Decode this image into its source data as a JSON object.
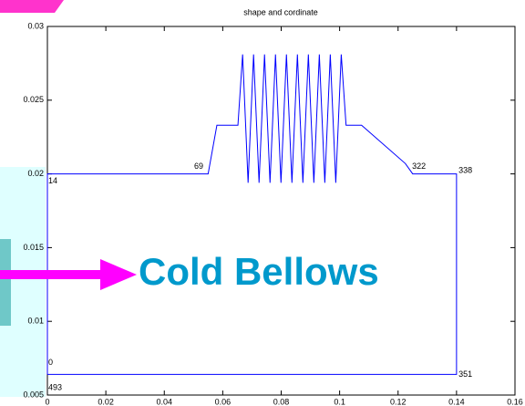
{
  "chart_data": {
    "type": "line",
    "title": "shape and cordinate",
    "series": [
      {
        "color": "#0000ff",
        "x": [
          0,
          0,
          0.055,
          0.058,
          0.0652,
          0.0668,
          0.06868,
          0.07055,
          0.07243,
          0.0743,
          0.07618,
          0.07805,
          0.07993,
          0.0818,
          0.08368,
          0.08555,
          0.08743,
          0.0893,
          0.09118,
          0.09305,
          0.09493,
          0.0968,
          0.09868,
          0.10055,
          0.1022,
          0.1075,
          0.1225,
          0.125,
          0.14,
          0.14,
          0
        ],
        "values": [
          0.0064,
          0.02,
          0.02,
          0.0233,
          0.0233,
          0.0281,
          0.0194,
          0.0281,
          0.0194,
          0.0281,
          0.0194,
          0.0281,
          0.0194,
          0.0281,
          0.0194,
          0.0281,
          0.0194,
          0.0281,
          0.0194,
          0.0281,
          0.0194,
          0.0281,
          0.0194,
          0.0281,
          0.0233,
          0.0233,
          0.0207,
          0.02,
          0.02,
          0.0064,
          0.0064
        ]
      }
    ],
    "xlim": [
      0,
      0.16
    ],
    "xticks": [
      0,
      0.02,
      0.04,
      0.06,
      0.08,
      0.1,
      0.12,
      0.14,
      0.16
    ],
    "ylim": [
      0.005,
      0.03
    ],
    "yticks": [
      0.005,
      0.01,
      0.015,
      0.02,
      0.025,
      0.03
    ],
    "annotations": [
      {
        "text": "69",
        "x": 0.0502,
        "y": 0.0205
      },
      {
        "text": "322",
        "x": 0.1248,
        "y": 0.0205
      },
      {
        "text": "338",
        "x": 0.1407,
        "y": 0.0202
      },
      {
        "text": "14",
        "x": 0.0003,
        "y": 0.0195
      },
      {
        "text": "0",
        "x": 0.0003,
        "y": 0.0072
      },
      {
        "text": "493",
        "x": 0.0003,
        "y": 0.0055
      },
      {
        "text": "351",
        "x": 0.1407,
        "y": 0.0064
      }
    ]
  },
  "callout": "Cold Bellows"
}
